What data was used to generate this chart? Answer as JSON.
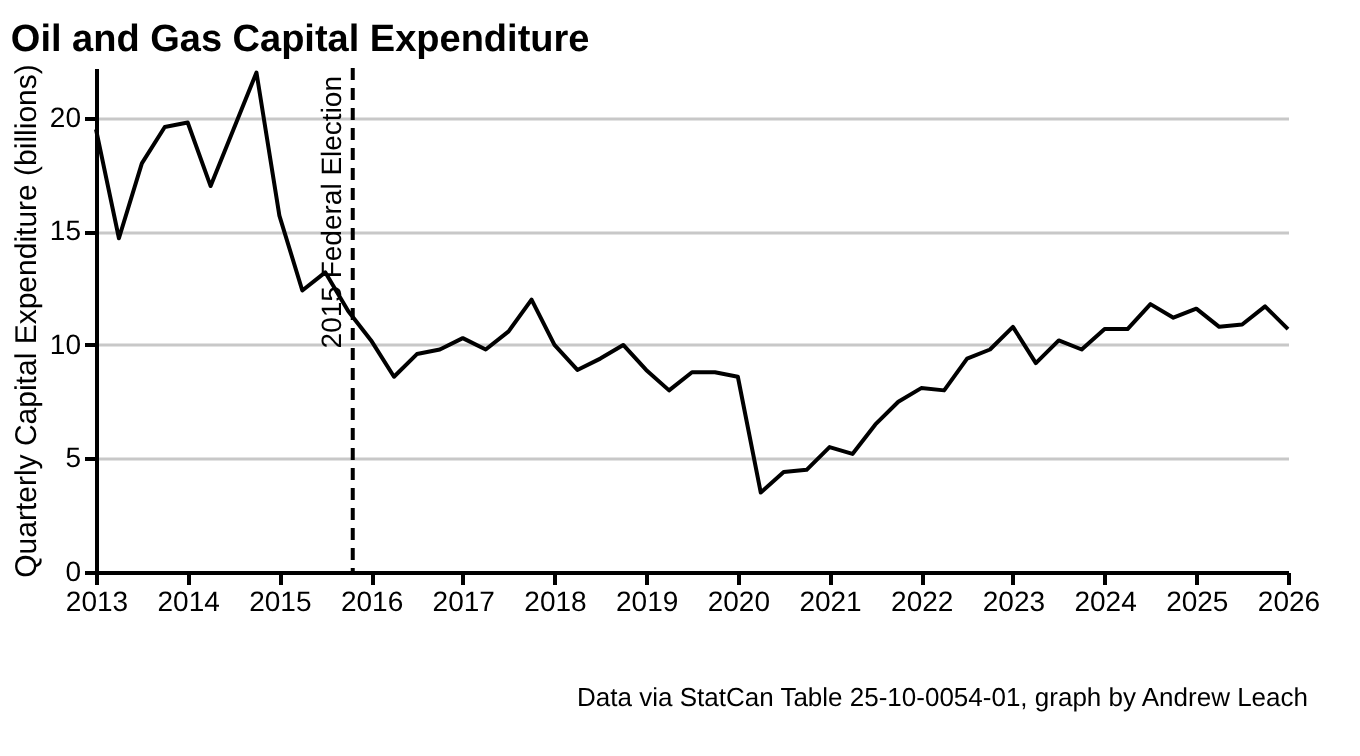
{
  "chart_data": {
    "type": "line",
    "title": "Oil and Gas Capital Expenditure",
    "ylabel": "Quarterly Capital Expenditure (billions)",
    "annotations": [
      "Data via StatCan Table 25-10-0054-01, graph by Andrew Leach"
    ],
    "x": [
      2013,
      2013.25,
      2013.5,
      2013.75,
      2014,
      2014.25,
      2014.5,
      2014.75,
      2015,
      2015.25,
      2015.5,
      2015.75,
      2016,
      2016.25,
      2016.5,
      2016.75,
      2017,
      2017.25,
      2017.5,
      2017.75,
      2018,
      2018.25,
      2018.5,
      2018.75,
      2019,
      2019.25,
      2019.5,
      2019.75,
      2020,
      2020.25,
      2020.5,
      2020.75,
      2021,
      2021.25,
      2021.5,
      2021.75,
      2022,
      2022.25,
      2022.5,
      2022.75,
      2023,
      2023.25,
      2023.5,
      2023.75,
      2024,
      2024.25,
      2024.5,
      2024.75,
      2025,
      2025.25,
      2025.5,
      2025.75,
      2026
    ],
    "series": [
      {
        "color": "#000000",
        "values": [
          19.5,
          14.7,
          18.0,
          19.6,
          19.8,
          17.0,
          19.5,
          22.0,
          15.7,
          12.4,
          13.2,
          11.5,
          10.2,
          8.6,
          9.6,
          9.8,
          10.3,
          9.8,
          10.6,
          12.0,
          10.0,
          8.9,
          9.4,
          10.0,
          8.9,
          8.0,
          8.8,
          8.8,
          8.6,
          3.5,
          4.4,
          4.5,
          5.5,
          5.2,
          6.5,
          7.5,
          8.1,
          8.0,
          9.4,
          9.8,
          10.8,
          9.2,
          10.2,
          9.8,
          10.7,
          10.7,
          11.8,
          11.2,
          11.6,
          10.8,
          10.9,
          11.7,
          10.7
        ]
      }
    ],
    "xlim": [
      2013,
      2026
    ],
    "xticks": [
      2013,
      2014,
      2015,
      2016,
      2017,
      2018,
      2019,
      2020,
      2021,
      2022,
      2023,
      2024,
      2025,
      2026
    ],
    "ylim": [
      0,
      22.2
    ],
    "yticks": [
      0,
      5,
      10,
      15,
      20
    ],
    "grid": "y",
    "marker": "none",
    "line_style": "solid",
    "ref_lines": [
      {
        "axis": "x",
        "value": 2015.8,
        "label": "2015 Federal Election",
        "color": "#000000",
        "line_style": "dashed"
      }
    ]
  }
}
